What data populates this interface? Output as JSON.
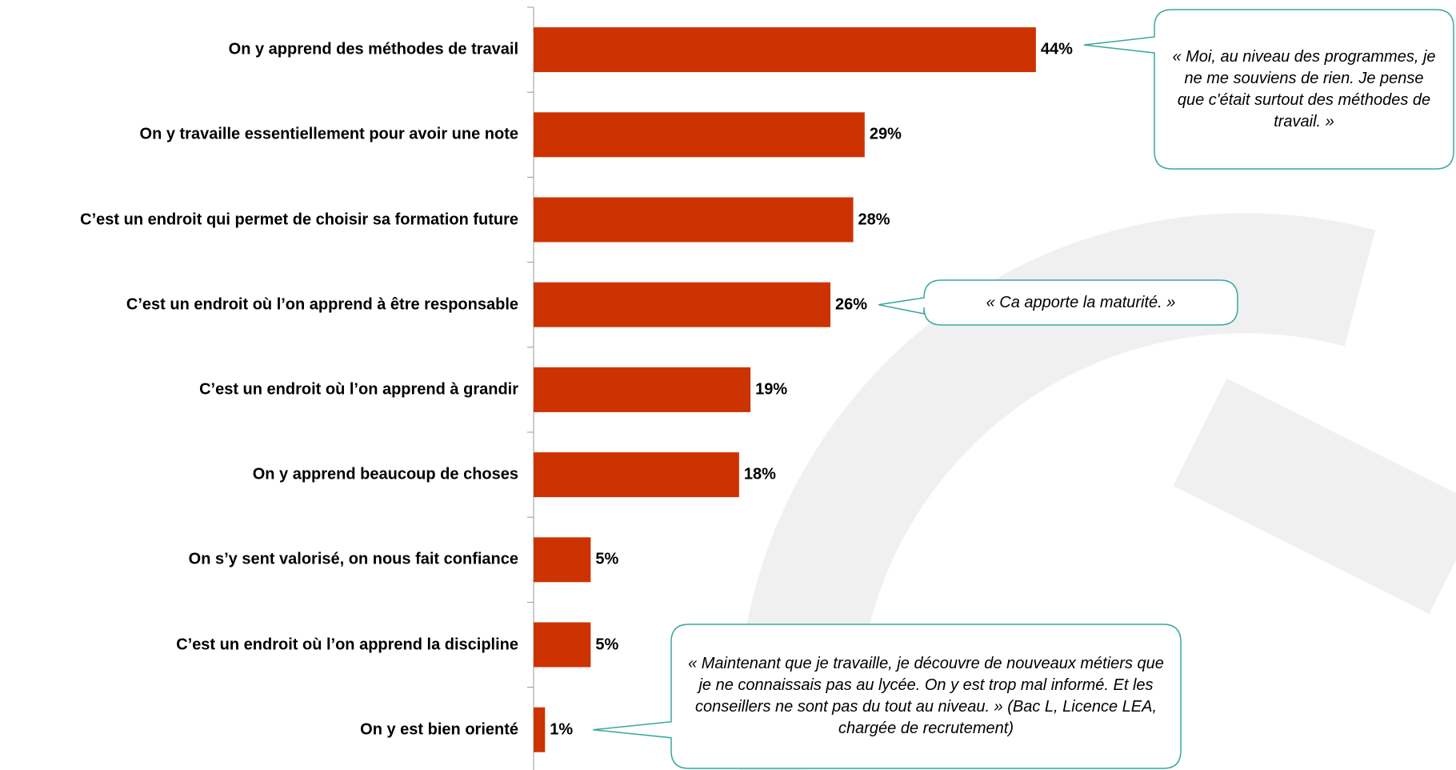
{
  "chart_data": {
    "type": "bar",
    "orientation": "horizontal",
    "categories": [
      "On y apprend des méthodes de travail",
      "On y travaille essentiellement pour avoir une note",
      "C’est un endroit qui permet de choisir sa formation future",
      "C’est un endroit où l’on apprend à être responsable",
      "C’est un endroit où l’on apprend à grandir",
      "On y apprend beaucoup de choses",
      "On s’y sent valorisé, on nous fait confiance",
      "C’est un endroit où l’on apprend la discipline",
      "On y est bien orienté"
    ],
    "values": [
      44,
      29,
      28,
      26,
      19,
      18,
      5,
      5,
      1
    ],
    "value_labels": [
      "44%",
      "29%",
      "28%",
      "26%",
      "19%",
      "18%",
      "5%",
      "5%",
      "1%"
    ],
    "color": "#cc3300",
    "annotations": [
      {
        "text": "« Moi, au niveau des programmes, je ne me souviens de rien. Je pense que c'était surtout des méthodes de travail. »",
        "category": 0
      },
      {
        "text": "« Ca apporte la maturité. »",
        "category": 3
      },
      {
        "text": "« Maintenant que je travaille, je découvre de nouveaux métiers que je ne connaissais pas au lycée. On y est trop mal informé. Et les conseillers ne sont pas du tout au niveau. » (Bac L, Licence LEA, chargée de recrutement)",
        "category": 8
      }
    ]
  }
}
